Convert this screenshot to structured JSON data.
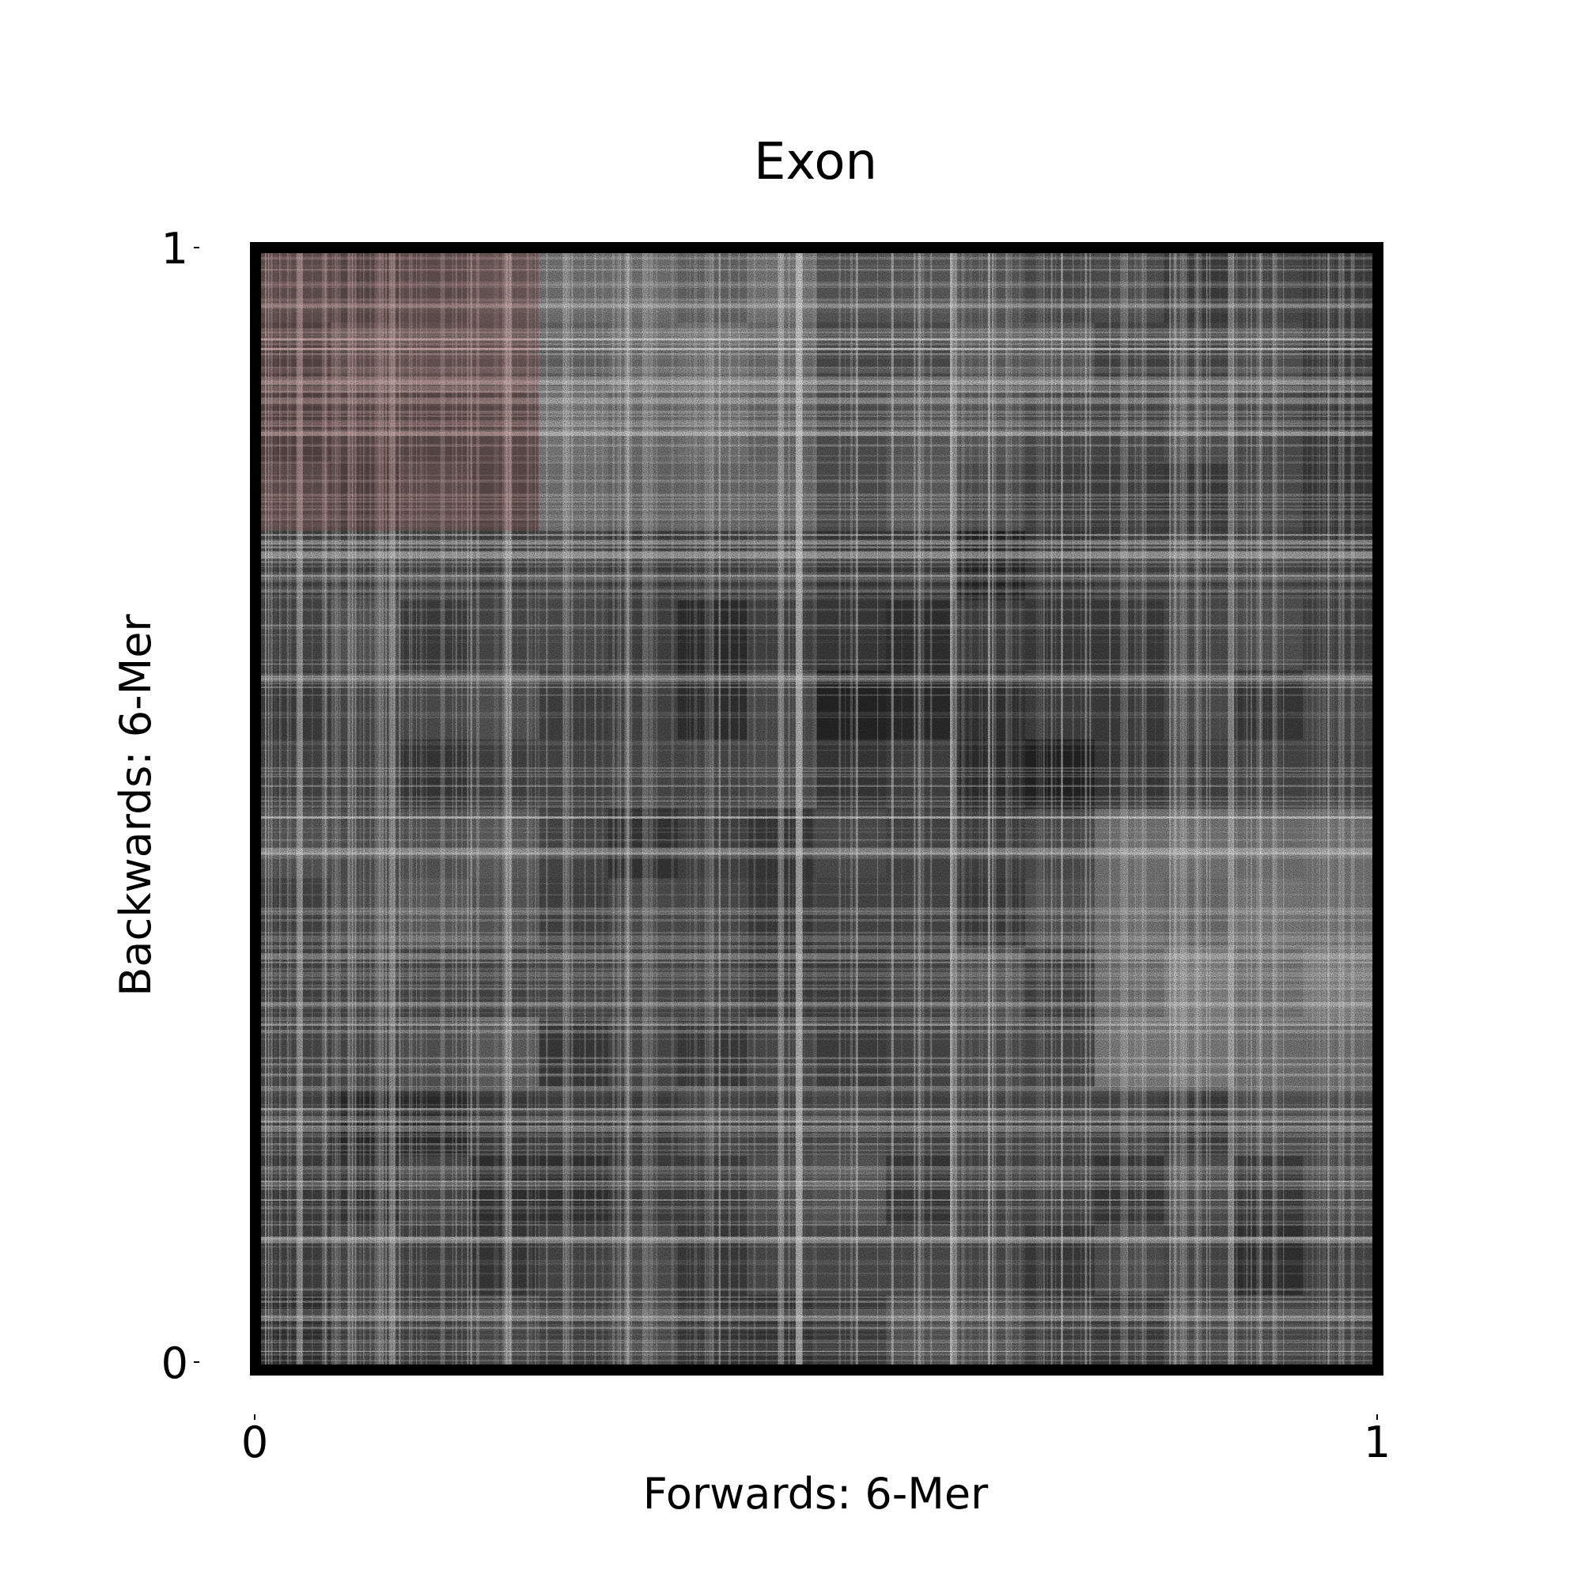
{
  "chart_data": {
    "type": "heatmap",
    "title": "Exon",
    "xlabel": "Forwards: 6-Mer",
    "ylabel": "Backwards: 6-Mer",
    "xlim": [
      0,
      1
    ],
    "ylim": [
      0,
      1
    ],
    "xticks": [
      "0",
      "1"
    ],
    "yticks": [
      "0",
      "1"
    ],
    "colormap": "grayscale, black = low, white = high",
    "highlight_region": {
      "x": [
        0,
        0.25
      ],
      "y": [
        0.75,
        1
      ],
      "color": "#e8a6a6"
    },
    "grid": false,
    "legend": "none"
  }
}
